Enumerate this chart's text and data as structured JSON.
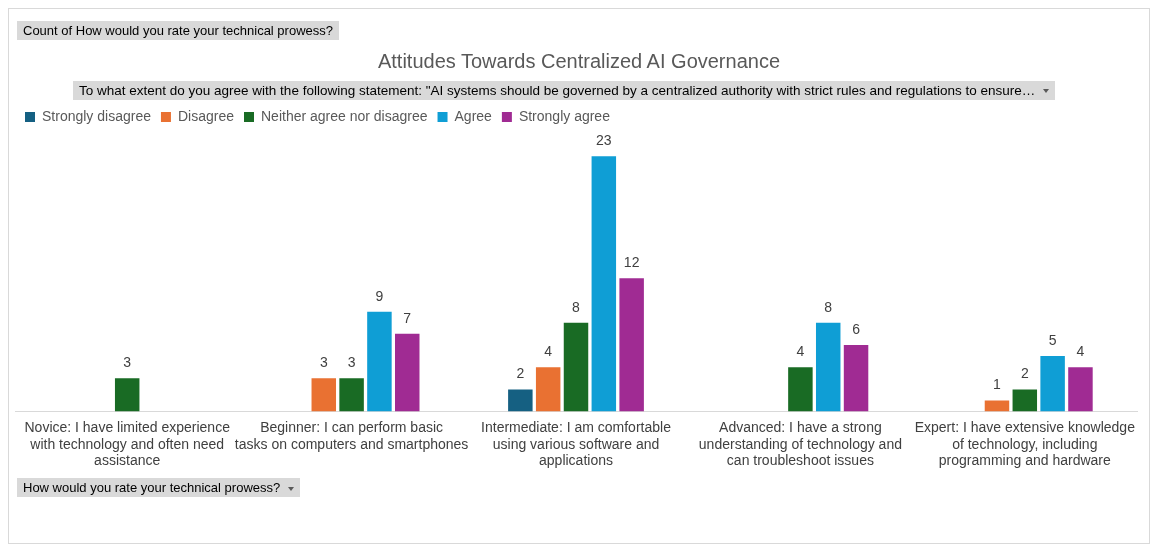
{
  "chart_data": {
    "type": "bar",
    "title": "Attitudes Towards Centralized AI Governance",
    "legend_title": "To what extent do you agree with the following statement: \"AI systems should be governed by a centralized authority with strict rules and regulations to ensure…",
    "xlabel": "How would you rate your technical prowess?",
    "annotations": [
      "Count of How would you rate your technical prowess?"
    ],
    "categories": [
      "Novice: I have limited experience with technology and often need assistance",
      "Beginner: I can perform basic tasks on computers and smartphones",
      "Intermediate: I am comfortable using various software and applications",
      "Advanced: I have a strong understanding of technology and can troubleshoot issues",
      "Expert: I have extensive knowledge of technology, including programming and hardware"
    ],
    "series": [
      {
        "name": "Strongly disagree",
        "color": "#156082",
        "values": [
          null,
          null,
          2,
          null,
          null
        ]
      },
      {
        "name": "Disagree",
        "color": "#e97132",
        "values": [
          null,
          3,
          4,
          null,
          1
        ]
      },
      {
        "name": "Neither agree nor disagree",
        "color": "#196b24",
        "values": [
          3,
          3,
          8,
          4,
          2
        ]
      },
      {
        "name": "Agree",
        "color": "#0f9ed5",
        "values": [
          null,
          9,
          23,
          8,
          5
        ]
      },
      {
        "name": "Strongly agree",
        "color": "#a02b93",
        "values": [
          null,
          7,
          12,
          6,
          4
        ]
      }
    ],
    "data_labels": true,
    "legend": "top left",
    "grid": false
  }
}
